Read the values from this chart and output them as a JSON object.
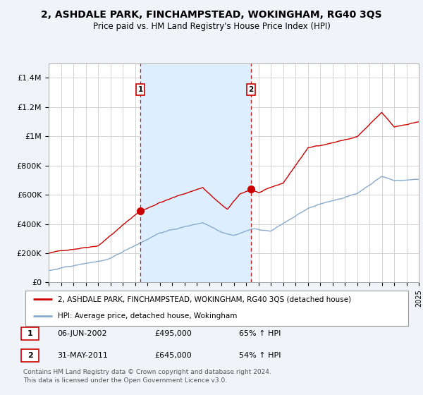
{
  "title": "2, ASHDALE PARK, FINCHAMPSTEAD, WOKINGHAM, RG40 3QS",
  "subtitle": "Price paid vs. HM Land Registry's House Price Index (HPI)",
  "ylim": [
    0,
    1500000
  ],
  "yticks": [
    0,
    200000,
    400000,
    600000,
    800000,
    1000000,
    1200000,
    1400000
  ],
  "ytick_labels": [
    "£0",
    "£200K",
    "£400K",
    "£600K",
    "£800K",
    "£1M",
    "£1.2M",
    "£1.4M"
  ],
  "sale1_x": 2002.44,
  "sale1_price": 495000,
  "sale1_label": "06-JUN-2002",
  "sale1_pct": "65%",
  "sale2_x": 2011.41,
  "sale2_price": 645000,
  "sale2_label": "31-MAY-2011",
  "sale2_pct": "54%",
  "property_color": "#cc0000",
  "hpi_color": "#88aacc",
  "shade_color": "#ddeeff",
  "legend_property": "2, ASHDALE PARK, FINCHAMPSTEAD, WOKINGHAM, RG40 3QS (detached house)",
  "legend_hpi": "HPI: Average price, detached house, Wokingham",
  "footnote": "Contains HM Land Registry data © Crown copyright and database right 2024.\nThis data is licensed under the Open Government Licence v3.0.",
  "background_color": "#f0f4f8",
  "plot_bg_color": "#ffffff",
  "grid_color": "#cccccc"
}
